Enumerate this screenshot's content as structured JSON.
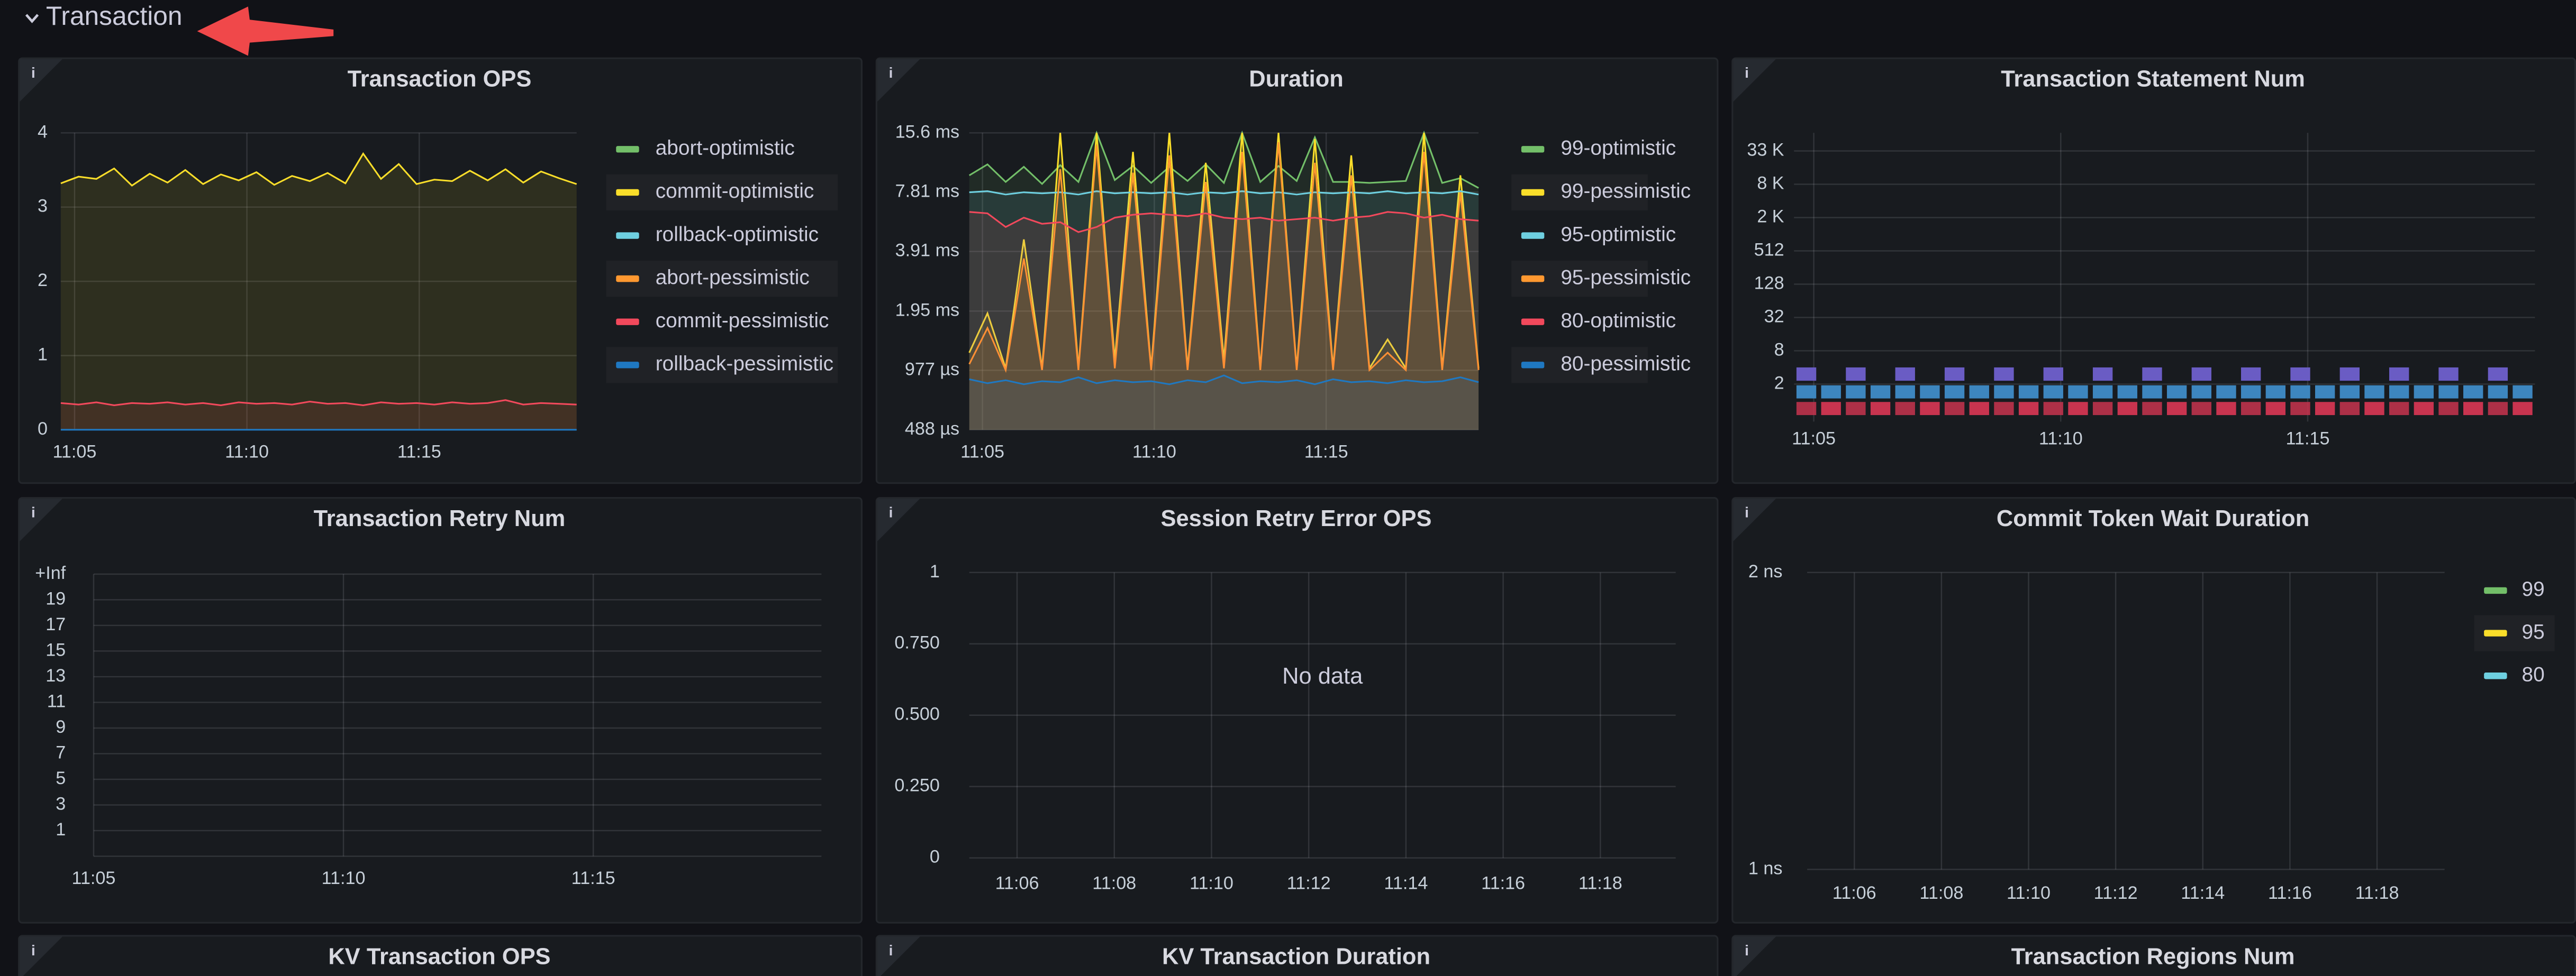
{
  "section": {
    "title": "Transaction"
  },
  "panels": [
    {
      "title": "Transaction OPS",
      "type": "line",
      "xlim": [
        "11:04:36",
        "11:19:34"
      ],
      "xticks": [
        "11:05",
        "11:10",
        "11:15"
      ],
      "ylim": [
        0,
        4
      ],
      "yticks": [
        0,
        1,
        2,
        3,
        4
      ],
      "grid": true,
      "series": [
        {
          "name": "abort-optimistic",
          "color": "#73bf69"
        },
        {
          "name": "commit-optimistic",
          "color": "#fade2a",
          "values": [
            3.32,
            3.41,
            3.38,
            3.52,
            3.29,
            3.45,
            3.33,
            3.5,
            3.31,
            3.44,
            3.36,
            3.47,
            3.3,
            3.42,
            3.35,
            3.46,
            3.32,
            3.72,
            3.38,
            3.58,
            3.31,
            3.37,
            3.35,
            3.49,
            3.36,
            3.51,
            3.33,
            3.48,
            3.39,
            3.31
          ]
        },
        {
          "name": "rollback-optimistic",
          "color": "#6ed0e0"
        },
        {
          "name": "abort-pessimistic",
          "color": "#ff9830"
        },
        {
          "name": "commit-pessimistic",
          "color": "#f2495c",
          "values": [
            0.36,
            0.34,
            0.37,
            0.33,
            0.36,
            0.35,
            0.37,
            0.34,
            0.36,
            0.33,
            0.37,
            0.35,
            0.36,
            0.34,
            0.38,
            0.35,
            0.36,
            0.33,
            0.37,
            0.35,
            0.36,
            0.34,
            0.37,
            0.35,
            0.36,
            0.4,
            0.34,
            0.36,
            0.35,
            0.34
          ]
        },
        {
          "name": "rollback-pessimistic",
          "color": "#1f78c1",
          "values": [
            0,
            0,
            0,
            0,
            0,
            0,
            0,
            0,
            0,
            0,
            0,
            0,
            0,
            0,
            0,
            0,
            0,
            0,
            0,
            0,
            0,
            0,
            0,
            0,
            0,
            0,
            0,
            0,
            0,
            0
          ]
        }
      ]
    },
    {
      "title": "Duration",
      "type": "line",
      "log": true,
      "xlim": [
        "11:04:37",
        "11:19:26"
      ],
      "xticks": [
        "11:05",
        "11:10",
        "11:15"
      ],
      "ylim": [
        0.000488,
        0.0156
      ],
      "yticks": [
        {
          "value": 0.000488,
          "label": "488 µs"
        },
        {
          "value": 0.000977,
          "label": "977 µs"
        },
        {
          "value": 0.00195,
          "label": "1.95 ms"
        },
        {
          "value": 0.00391,
          "label": "3.91 ms"
        },
        {
          "value": 0.00781,
          "label": "7.81 ms"
        },
        {
          "value": 0.0156,
          "label": "15.6 ms"
        }
      ],
      "grid": true,
      "series": [
        {
          "name": "99-optimistic",
          "color": "#73bf69",
          "values": [
            0.0095,
            0.0108,
            0.0088,
            0.0105,
            0.0086,
            0.0107,
            0.0088,
            0.0156,
            0.009,
            0.0106,
            0.0087,
            0.0105,
            0.0089,
            0.0108,
            0.0087,
            0.0156,
            0.0088,
            0.0106,
            0.0089,
            0.0148,
            0.0088,
            0.0088,
            0.0087,
            0.0088,
            0.0089,
            0.0156,
            0.0087,
            0.0092,
            0.0082
          ]
        },
        {
          "name": "99-pessimistic",
          "color": "#fade2a",
          "values": [
            0.0012,
            0.0019,
            0.001,
            0.0045,
            0.001,
            0.0156,
            0.001,
            0.0156,
            0.0011,
            0.0125,
            0.001,
            0.0156,
            0.001,
            0.011,
            0.0011,
            0.0156,
            0.001,
            0.0156,
            0.001,
            0.0145,
            0.001,
            0.012,
            0.001,
            0.0014,
            0.001,
            0.0156,
            0.001,
            0.0095,
            0.001
          ]
        },
        {
          "name": "95-optimistic",
          "color": "#6ed0e0",
          "values": [
            0.0078,
            0.0079,
            0.0076,
            0.0078,
            0.0077,
            0.0078,
            0.0076,
            0.0079,
            0.0077,
            0.0078,
            0.0077,
            0.0078,
            0.0076,
            0.0078,
            0.0077,
            0.0079,
            0.0077,
            0.0078,
            0.0076,
            0.0078,
            0.0077,
            0.0078,
            0.0077,
            0.0079,
            0.0077,
            0.0078,
            0.0077,
            0.0079,
            0.0076
          ]
        },
        {
          "name": "95-pessimistic",
          "color": "#ff9830",
          "values": [
            0.00105,
            0.0016,
            0.00098,
            0.0036,
            0.00098,
            0.0102,
            0.00098,
            0.0135,
            0.001,
            0.0098,
            0.00098,
            0.012,
            0.00098,
            0.0088,
            0.001,
            0.0125,
            0.00098,
            0.014,
            0.00098,
            0.011,
            0.00098,
            0.0095,
            0.00098,
            0.0012,
            0.00098,
            0.0125,
            0.00098,
            0.0078,
            0.00098
          ]
        },
        {
          "name": "80-optimistic",
          "color": "#f2495c",
          "values": [
            0.0062,
            0.0061,
            0.0052,
            0.0058,
            0.0054,
            0.0055,
            0.0049,
            0.0052,
            0.0058,
            0.006,
            0.0061,
            0.006,
            0.0059,
            0.0061,
            0.0058,
            0.0057,
            0.0058,
            0.0056,
            0.0057,
            0.0058,
            0.0056,
            0.0058,
            0.0059,
            0.0062,
            0.0061,
            0.0058,
            0.006,
            0.0057,
            0.0056
          ]
        },
        {
          "name": "80-pessimistic",
          "color": "#1f78c1",
          "values": [
            0.00088,
            0.00084,
            0.00087,
            0.00083,
            0.00086,
            0.00085,
            0.0009,
            0.00084,
            0.00087,
            0.00085,
            0.00086,
            0.00083,
            0.00087,
            0.00085,
            0.00092,
            0.00084,
            0.00086,
            0.00085,
            0.00087,
            0.00083,
            0.00088,
            0.00085,
            0.00086,
            0.00084,
            0.00087,
            0.00085,
            0.00086,
            0.0009,
            0.00085
          ]
        }
      ]
    },
    {
      "title": "Transaction Statement Num",
      "type": "heatmap",
      "log": true,
      "xlim": [
        "11:04:36",
        "11:19:36"
      ],
      "xticks": [
        "11:05",
        "11:10",
        "11:15"
      ],
      "ylim": [
        0.42,
        69500
      ],
      "yticks": [
        2,
        8,
        32,
        128,
        512,
        {
          "value": 2048,
          "label": "2 K"
        },
        {
          "value": 8192,
          "label": "8 K"
        },
        {
          "value": 32768,
          "label": "33 K"
        }
      ],
      "grid": true,
      "rows": [
        {
          "range": [
            2.3,
            4
          ],
          "color": "#6a5cc4",
          "values": [
            1,
            0,
            1,
            0,
            1,
            0,
            1,
            0,
            1,
            0,
            1,
            0,
            1,
            0,
            1,
            0,
            1,
            0,
            1,
            0,
            1,
            0,
            1,
            0,
            1,
            0,
            1,
            0,
            1,
            0
          ]
        },
        {
          "range": [
            1.1,
            1.9
          ],
          "color": "#3d86bf",
          "values": [
            2,
            2,
            2,
            2,
            2,
            2,
            2,
            2,
            2,
            2,
            2,
            2,
            2,
            2,
            2,
            2,
            2,
            2,
            2,
            2,
            2,
            2,
            2,
            2,
            2,
            2,
            2,
            2,
            2,
            2
          ]
        },
        {
          "range": [
            0.55,
            0.95
          ],
          "color": "#c8344f",
          "values": [
            2,
            3,
            2,
            3,
            2,
            3,
            2,
            3,
            2,
            3,
            2,
            3,
            2,
            3,
            2,
            3,
            2,
            3,
            2,
            3,
            2,
            3,
            2,
            3,
            2,
            3,
            2,
            3,
            2,
            3
          ]
        }
      ]
    },
    {
      "title": "Transaction Retry Num",
      "type": "heatmap",
      "xlim": [
        "11:05",
        "11:19:34"
      ],
      "xticks": [
        "11:05",
        "11:10",
        "11:15"
      ],
      "ybuckets": [
        "1",
        "3",
        "5",
        "7",
        "9",
        "11",
        "13",
        "15",
        "17",
        "19",
        "+Inf"
      ],
      "grid": true
    },
    {
      "title": "Session Retry Error OPS",
      "type": "line",
      "xlim": [
        "11:05:01",
        "11:19:33"
      ],
      "xticks": [
        "11:06",
        "11:08",
        "11:10",
        "11:12",
        "11:14",
        "11:16",
        "11:18"
      ],
      "ylim": [
        0,
        1
      ],
      "yticks": [
        0,
        {
          "value": 0.25,
          "label": "0.250"
        },
        {
          "value": 0.5,
          "label": "0.500"
        },
        {
          "value": 0.75,
          "label": "0.750"
        },
        1
      ],
      "grid": true,
      "message": "No data"
    },
    {
      "title": "Commit Token Wait Duration",
      "type": "line",
      "xlim": [
        "11:04:55",
        "11:19:33"
      ],
      "xticks": [
        "11:06",
        "11:08",
        "11:10",
        "11:12",
        "11:14",
        "11:16",
        "11:18"
      ],
      "ylim": [
        1,
        2
      ],
      "yticks": [
        {
          "value": 1,
          "label": "1 ns"
        },
        {
          "value": 2,
          "label": "2 ns"
        }
      ],
      "grid": true,
      "series": [
        {
          "name": "99",
          "color": "#73bf69"
        },
        {
          "name": "95",
          "color": "#fade2a"
        },
        {
          "name": "80",
          "color": "#6ed0e0"
        }
      ]
    },
    {
      "title": "KV Transaction OPS"
    },
    {
      "title": "KV Transaction Duration"
    },
    {
      "title": "Transaction Regions Num"
    }
  ]
}
